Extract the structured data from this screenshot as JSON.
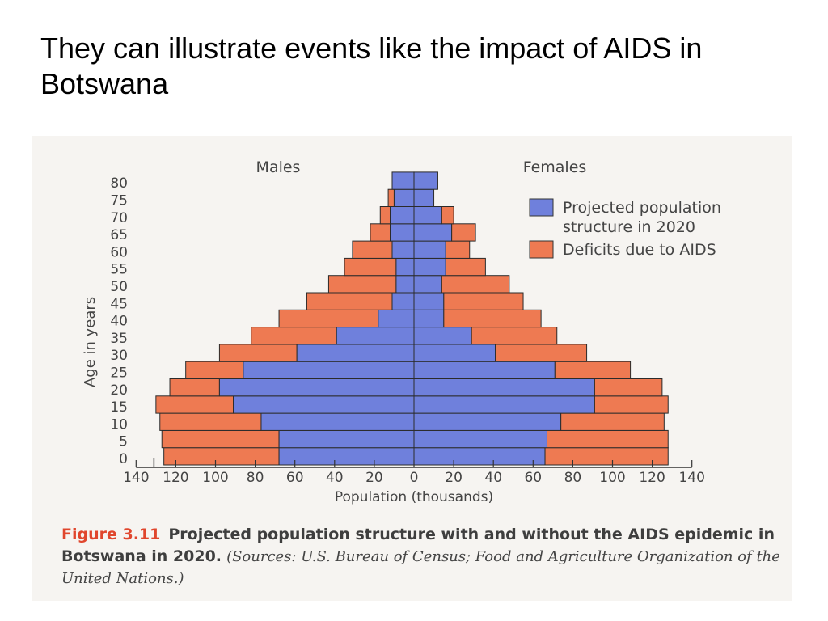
{
  "slide": {
    "title": "They can illustrate events like the impact of AIDS in Botswana"
  },
  "caption": {
    "figure_number": "Figure 3.11",
    "text": "Projected population structure with and without the AIDS epidemic in Botswana in 2020.",
    "sources": "(Sources: U.S. Bureau of Census; Food and Agriculture Organization of the United Nations.)"
  },
  "colors": {
    "projected": "#6f80dc",
    "deficit": "#ee7a52",
    "bar_stroke": "#2b2b2b",
    "axis_text": "#444444"
  },
  "chart_data": {
    "type": "bar",
    "orientation": "horizontal-population-pyramid",
    "title": "",
    "left_group_label": "Males",
    "right_group_label": "Females",
    "xlabel": "Population (thousands)",
    "ylabel": "Age in years",
    "xlim": [
      -140,
      140
    ],
    "x_tick_values": [
      -140,
      -120,
      -100,
      -80,
      -60,
      -40,
      -20,
      0,
      20,
      40,
      60,
      80,
      100,
      120,
      140
    ],
    "x_tick_labels": [
      "140",
      "120",
      "100",
      "80",
      "60",
      "40",
      "20",
      "0",
      "20",
      "40",
      "60",
      "80",
      "100",
      "120",
      "140"
    ],
    "age_groups": [
      "0",
      "5",
      "10",
      "15",
      "20",
      "25",
      "30",
      "35",
      "40",
      "45",
      "50",
      "55",
      "60",
      "65",
      "70",
      "75",
      "80"
    ],
    "legend": [
      {
        "key": "projected",
        "label_line1": "Projected population",
        "label_line2": "structure in 2020"
      },
      {
        "key": "deficit",
        "label_line1": "Deficits due to AIDS",
        "label_line2": ""
      }
    ],
    "legend_position": "top-right",
    "series": [
      {
        "name": "Projected population structure in 2020 (Males)",
        "side": "left",
        "values": [
          68,
          68,
          77,
          91,
          98,
          86,
          59,
          39,
          18,
          11,
          9,
          9,
          11,
          12,
          12,
          10,
          11
        ]
      },
      {
        "name": "Deficits due to AIDS (Males)",
        "side": "left",
        "values": [
          58,
          59,
          51,
          39,
          25,
          29,
          39,
          43,
          50,
          43,
          34,
          26,
          20,
          10,
          5,
          3,
          0
        ]
      },
      {
        "name": "Projected population structure in 2020 (Females)",
        "side": "right",
        "values": [
          66,
          67,
          74,
          91,
          91,
          71,
          41,
          29,
          15,
          15,
          14,
          16,
          16,
          19,
          14,
          10,
          12
        ]
      },
      {
        "name": "Deficits due to AIDS (Females)",
        "side": "right",
        "values": [
          62,
          61,
          52,
          37,
          34,
          38,
          46,
          43,
          49,
          40,
          34,
          20,
          12,
          12,
          6,
          0,
          0
        ]
      }
    ]
  }
}
